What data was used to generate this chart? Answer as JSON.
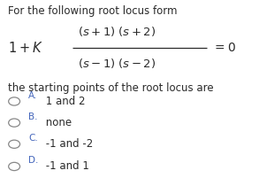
{
  "title_line": "For the following root locus form",
  "numerator": "(s+1) (s+2)",
  "denominator": "(s– 1) (s– 2)",
  "prefix": "1+K",
  "suffix": "=0",
  "subtitle": "the starting points of the root locus are",
  "options": [
    {
      "label": "A.",
      "text": " 1 and 2"
    },
    {
      "label": "B.",
      "text": " none"
    },
    {
      "label": "C.",
      "text": " -1 and -2"
    },
    {
      "label": "D.",
      "text": " -1 and 1"
    }
  ],
  "bg_color": "#ffffff",
  "text_color": "#2a2a2a",
  "option_label_color": "#4466bb",
  "option_text_color": "#2a2a2a",
  "circle_color": "#888888",
  "fs_title": 8.5,
  "fs_math": 9.5,
  "fs_subtitle": 8.5,
  "fs_option_label": 7.5,
  "fs_option_text": 8.5
}
